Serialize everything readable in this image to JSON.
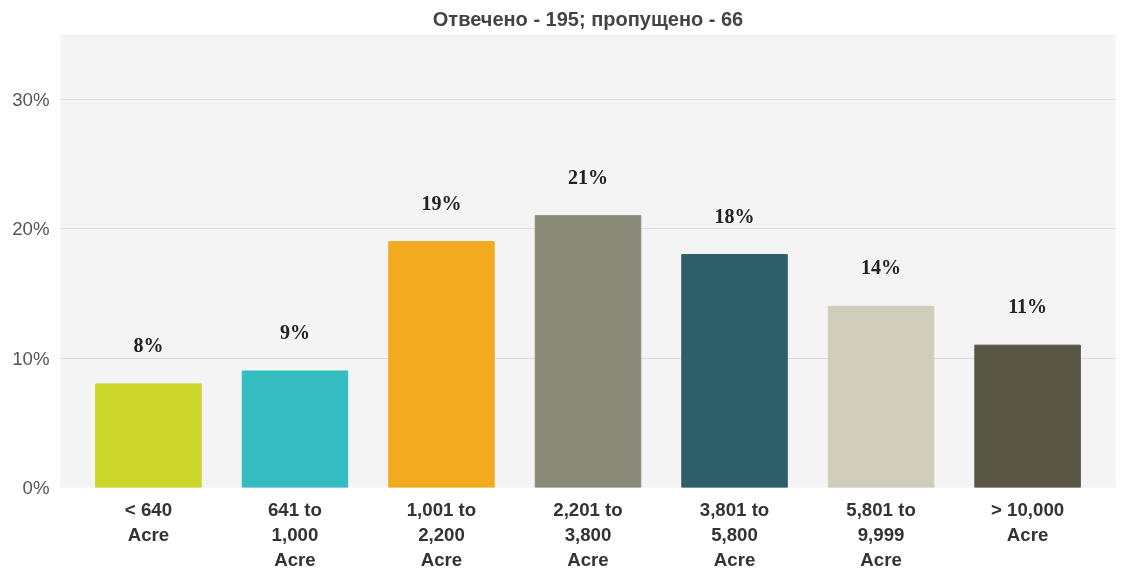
{
  "chart_data": {
    "type": "bar",
    "title": "Отвечено - 195; пропущено - 66",
    "categories": [
      "< 640 Acre",
      "641 to 1,000 Acre",
      "1,001 to 2,200 Acre",
      "2,201 to 3,800 Acre",
      "3,801 to 5,800 Acre",
      "5,801 to 9,999 Acre",
      "> 10,000 Acre"
    ],
    "values": [
      8,
      9,
      19,
      21,
      18,
      14,
      11
    ],
    "colors": [
      "#cbd52a",
      "#34bcc0",
      "#f2ab1f",
      "#8a8a78",
      "#2e5e6a",
      "#d0cdbb",
      "#5a5645"
    ],
    "ylim": [
      0,
      35
    ],
    "yticks": [
      {
        "value": 0,
        "label": "0%"
      },
      {
        "value": 10,
        "label": "10%"
      },
      {
        "value": 20,
        "label": "20%"
      },
      {
        "value": 30,
        "label": "30%"
      }
    ],
    "grid": "y",
    "data_labels": true,
    "value_labels": [
      "8%",
      "9%",
      "19%",
      "21%",
      "18%",
      "14%",
      "11%"
    ]
  }
}
